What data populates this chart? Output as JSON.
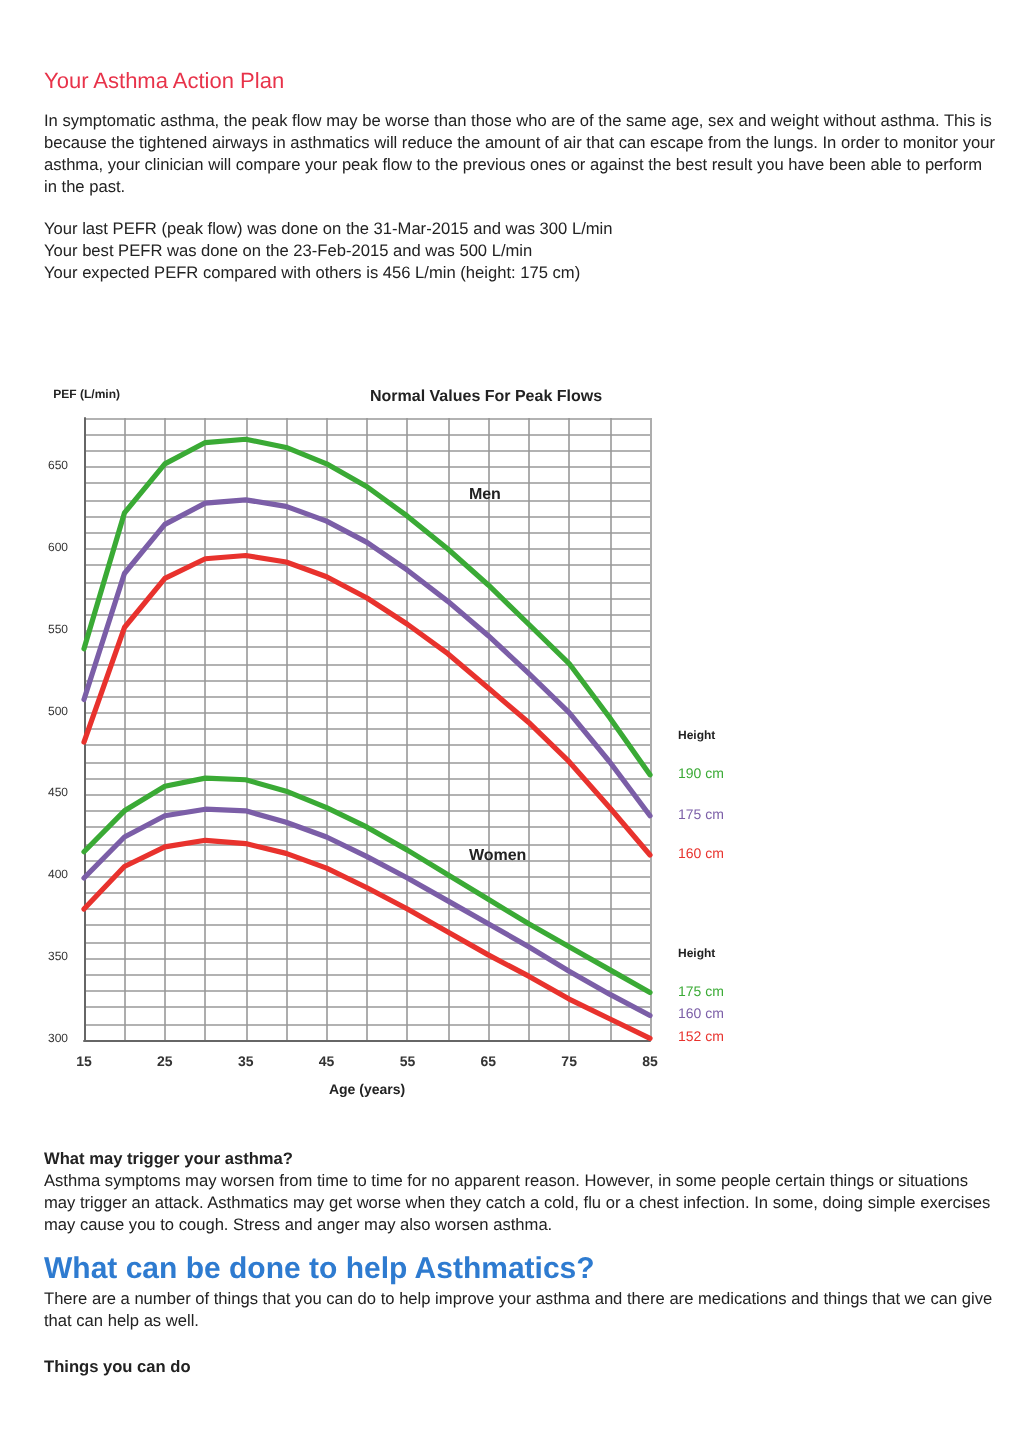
{
  "chart_data": {
    "type": "line",
    "title": "Normal Values For Peak Flows",
    "xlabel": "Age (years)",
    "ylabel": "PEF (L/min)",
    "annotations": [
      "Your Asthma Action Plan",
      "In symptomatic asthma, the peak flow may be worse than those who are of the same age, sex and weight without asthma. This is because the tightened airways in asthmatics will reduce the amount of air that can escape from the lungs. In order to monitor your asthma, your clinician will compare your peak flow to the previous ones or against the best result you have been able to perform in the past.",
      "Your last PEFR (peak flow) was done on the 31-Mar-2015 and was 300 L/min",
      "Your best PEFR was done on the 23-Feb-2015 and was 500 L/min",
      "Your expected PEFR compared with others is 456 L/min (height: 175 cm)",
      "Men",
      "Women",
      "Height",
      "Height",
      "What may trigger your asthma?",
      "Asthma symptoms may worsen from time to time for no apparent reason. However, in some people certain things or situations may trigger an attack. Asthmatics may get worse when they catch a cold, flu or a chest infection. In some, doing simple exercises may cause you to cough. Stress and anger may also worsen asthma.",
      "What can be done to help Asthmatics?",
      "There are a number of things that you can do to help improve your asthma and there are medications and things that we can give that can help as well.",
      "Things you can do"
    ],
    "x": [
      15,
      20,
      25,
      30,
      35,
      40,
      45,
      50,
      55,
      60,
      65,
      70,
      75,
      80,
      85
    ],
    "series": [
      {
        "name": "190 cm",
        "color": "#3aaa35",
        "values": [
          539,
          622,
          652,
          665,
          667,
          662,
          652,
          638,
          620,
          600,
          578,
          554,
          530,
          497,
          462
        ]
      },
      {
        "name": "175 cm",
        "color": "#7b5ea7",
        "values": [
          508,
          585,
          615,
          628,
          630,
          626,
          617,
          604,
          587,
          568,
          547,
          524,
          500,
          470,
          437
        ]
      },
      {
        "name": "160 cm",
        "color": "#e8322d",
        "values": [
          482,
          552,
          582,
          594,
          596,
          592,
          583,
          570,
          554,
          536,
          515,
          494,
          470,
          442,
          413
        ]
      },
      {
        "name": "175 cm",
        "color": "#3aaa35",
        "values": [
          415,
          440,
          455,
          460,
          459,
          452,
          442,
          430,
          416,
          401,
          386,
          371,
          357,
          343,
          329
        ]
      },
      {
        "name": "160 cm",
        "color": "#7b5ea7",
        "values": [
          399,
          424,
          437,
          441,
          440,
          433,
          424,
          412,
          399,
          385,
          371,
          357,
          342,
          328,
          315
        ]
      },
      {
        "name": "152 cm",
        "color": "#e8322d",
        "values": [
          380,
          406,
          418,
          422,
          420,
          414,
          405,
          393,
          380,
          366,
          352,
          339,
          325,
          313,
          301
        ]
      }
    ],
    "xlim": [
      15,
      85
    ],
    "xticks": [
      15,
      25,
      35,
      45,
      55,
      65,
      75,
      85
    ],
    "ylim": [
      300,
      680
    ],
    "yticks": [
      300,
      350,
      400,
      450,
      500,
      550,
      600,
      650
    ],
    "grid": true,
    "legend": false,
    "marker": "none",
    "line_style": "solid"
  }
}
